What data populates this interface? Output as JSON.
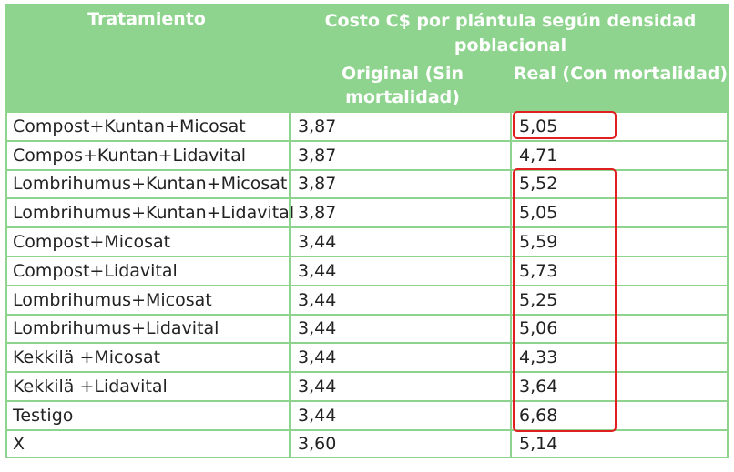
{
  "header": {
    "treatment": "Tratamiento",
    "cost_group": "Costo C$ por plántula según densidad poblacional",
    "original": "Original (Sin mortalidad)",
    "real": "Real (Con mortalidad)"
  },
  "rows": [
    {
      "treatment": "Compost+Kuntan+Micosat",
      "original": "3,87",
      "real": "5,05"
    },
    {
      "treatment": "Compos+Kuntan+Lidavital",
      "original": "3,87",
      "real": "4,71"
    },
    {
      "treatment": "Lombrihumus+Kuntan+Micosat",
      "original": "3,87",
      "real": "5,52"
    },
    {
      "treatment": "Lombrihumus+Kuntan+Lidavital",
      "original": "3,87",
      "real": "5,05"
    },
    {
      "treatment": "Compost+Micosat",
      "original": "3,44",
      "real": "5,59"
    },
    {
      "treatment": "Compost+Lidavital",
      "original": "3,44",
      "real": "5,73"
    },
    {
      "treatment": "Lombrihumus+Micosat",
      "original": "3,44",
      "real": "5,25"
    },
    {
      "treatment": "Lombrihumus+Lidavital",
      "original": "3,44",
      "real": "5,06"
    },
    {
      "treatment": "Kekkilä +Micosat",
      "original": "3,44",
      "real": "4,33"
    },
    {
      "treatment": "Kekkilä +Lidavital",
      "original": "3,44",
      "real": "3,64"
    },
    {
      "treatment": "Testigo",
      "original": "3,44",
      "real": "6,68"
    },
    {
      "treatment": "X",
      "original": "3,60",
      "real": "5,14"
    }
  ],
  "colors": {
    "header_bg": "#8fd48e",
    "highlight": "#e02020"
  }
}
